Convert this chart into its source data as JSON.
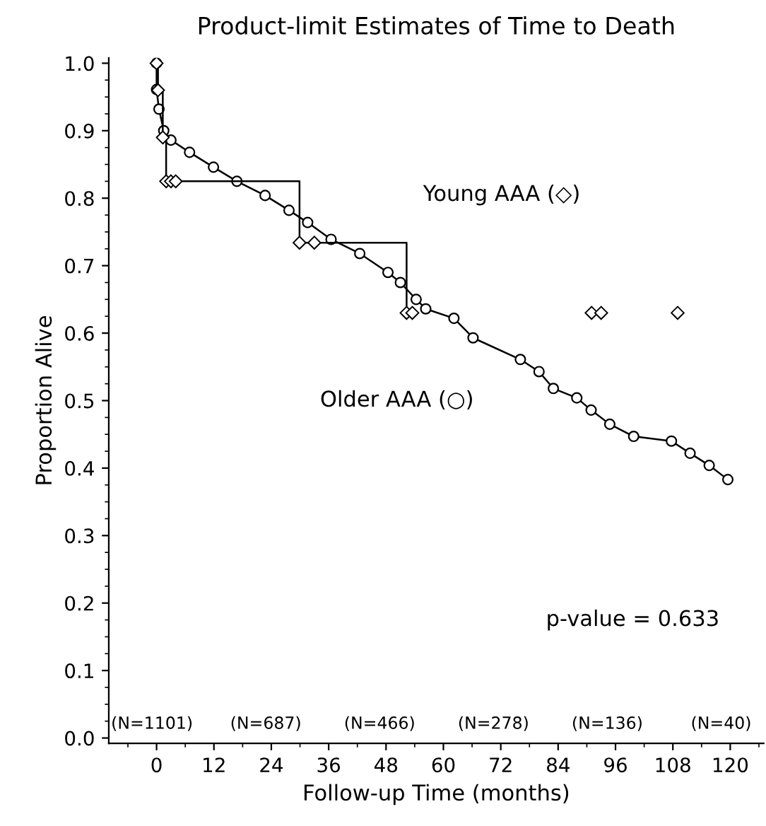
{
  "chart_data": {
    "type": "line",
    "title": "Product-limit Estimates of Time to Death",
    "xlabel": "Follow-up Time (months)",
    "ylabel": "Proportion Alive",
    "xlim": [
      -10,
      127
    ],
    "ylim": [
      -0.008,
      1.008
    ],
    "xticks": [
      0,
      12,
      24,
      36,
      48,
      60,
      72,
      84,
      96,
      108,
      120
    ],
    "yticks": [
      {
        "value": 0,
        "label": "0.0"
      },
      0.1,
      0.2,
      0.3,
      0.4,
      0.5,
      0.6,
      0.7,
      0.8,
      0.9,
      {
        "value": 1,
        "label": "1.0"
      }
    ],
    "grid": false,
    "legend": false,
    "series": [
      {
        "name": "Young AAA (◇)",
        "type": "step",
        "marker": "diamond",
        "color": "#000000",
        "x": [
          0,
          0.3,
          1.3,
          2,
          3,
          4,
          29.9,
          33,
          52.3,
          53.5
        ],
        "values": [
          1.0,
          0.96,
          0.89,
          0.825,
          0.825,
          0.825,
          0.734,
          0.734,
          0.63,
          0.63
        ]
      },
      {
        "type": "scatter",
        "marker": "diamond",
        "color": "#000000",
        "x": [
          91,
          93,
          109
        ],
        "values": [
          0.63,
          0.63,
          0.63
        ]
      },
      {
        "name": "Older AAA (○)",
        "type": "line",
        "marker": "circle",
        "color": "#000000",
        "x": [
          0,
          0,
          0.5,
          1.5,
          3.0,
          6.9,
          11.9,
          16.8,
          22.7,
          27.7,
          31.6,
          36.5,
          42.5,
          48.4,
          51.0,
          54.3,
          56.3,
          62.2,
          66.2,
          76.1,
          80.0,
          83.0,
          87.9,
          90.9,
          94.8,
          99.8,
          107.7,
          111.6,
          115.6,
          119.5
        ],
        "values": [
          1.0,
          0.961,
          0.932,
          0.9,
          0.886,
          0.868,
          0.846,
          0.825,
          0.804,
          0.782,
          0.764,
          0.739,
          0.718,
          0.69,
          0.675,
          0.65,
          0.636,
          0.622,
          0.593,
          0.561,
          0.543,
          0.518,
          0.504,
          0.486,
          0.465,
          0.447,
          0.44,
          0.422,
          0.404,
          0.383
        ]
      }
    ],
    "annotations": [
      "p-value = 0.633",
      "(N=1101)",
      "(N=687)",
      "(N=466)",
      "(N=278)",
      "(N=136)",
      "(N=40)"
    ]
  }
}
